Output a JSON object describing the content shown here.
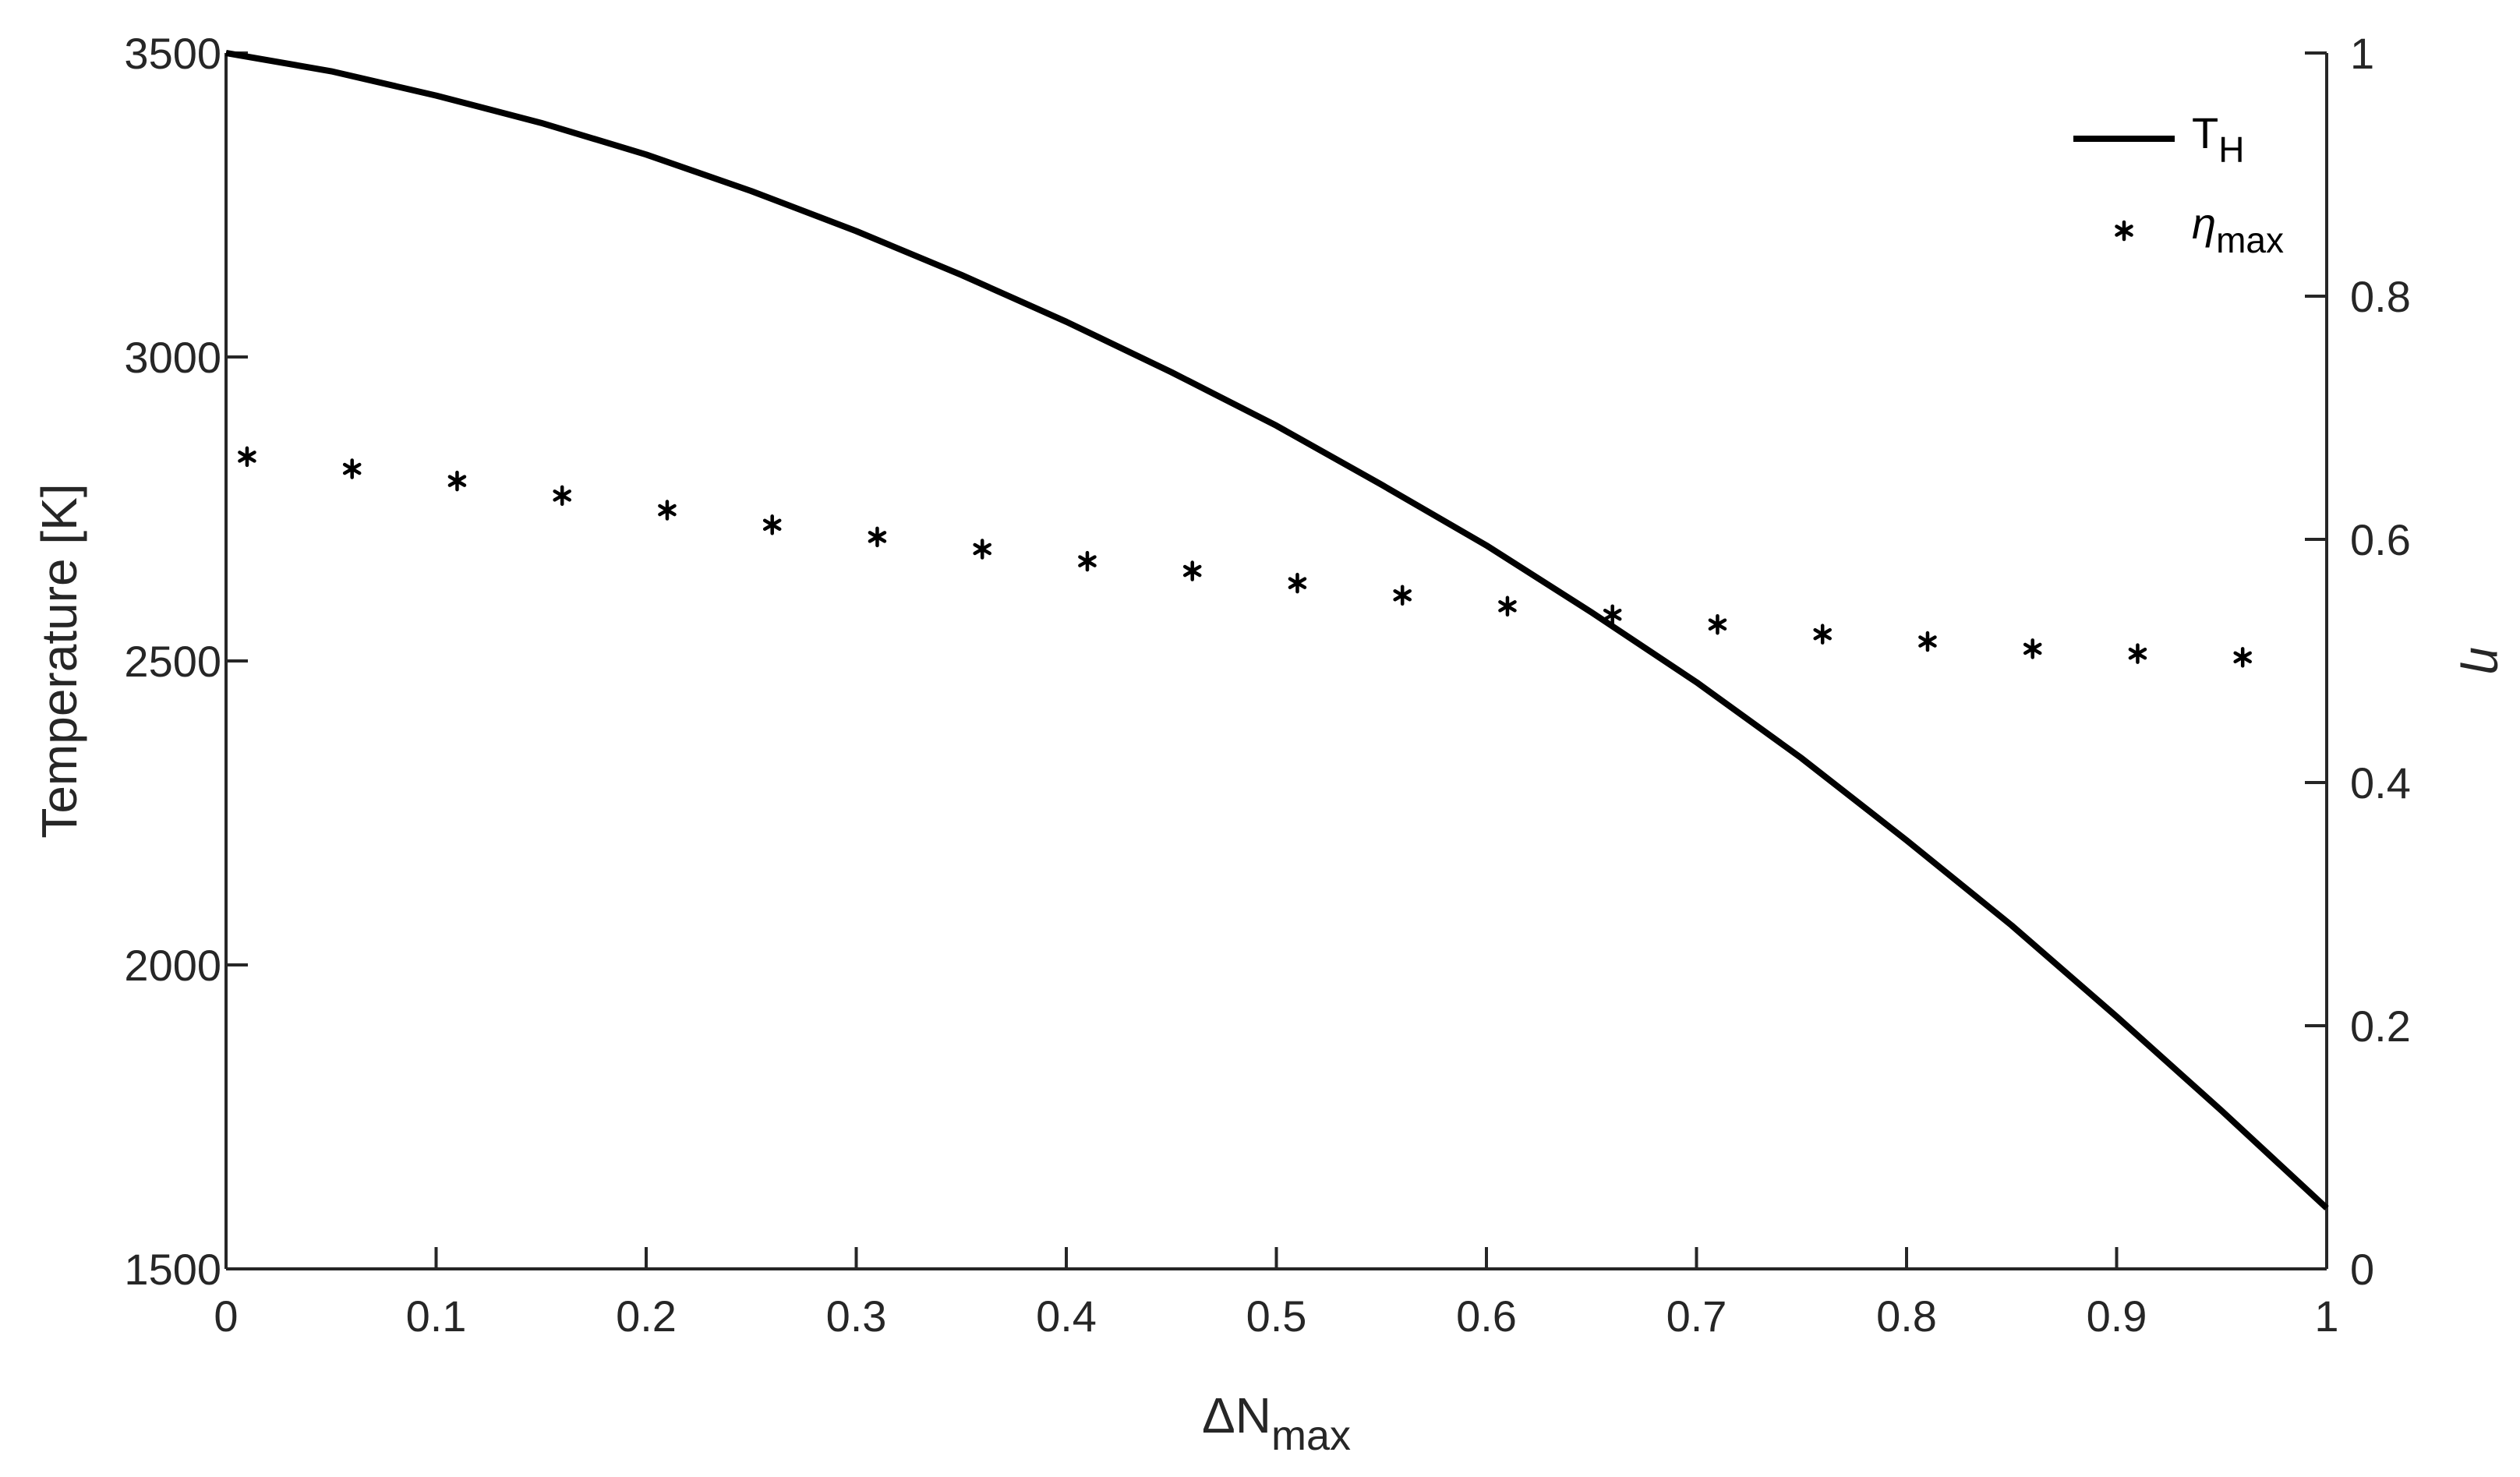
{
  "chart_data": {
    "type": "line",
    "x_axis": {
      "label_main": "ΔN",
      "label_sub": "max",
      "range": [
        0,
        1
      ],
      "ticks": [
        0,
        0.1,
        0.2,
        0.3,
        0.4,
        0.5,
        0.6,
        0.7,
        0.8,
        0.9,
        1
      ],
      "tick_labels": [
        "0",
        "0.1",
        "0.2",
        "0.3",
        "0.4",
        "0.5",
        "0.6",
        "0.7",
        "0.8",
        "0.9",
        "1"
      ]
    },
    "y_left_axis": {
      "label": "Temperature [K]",
      "range": [
        1500,
        3500
      ],
      "ticks": [
        1500,
        2000,
        2500,
        3000,
        3500
      ],
      "tick_labels": [
        "1500",
        "2000",
        "2500",
        "3000",
        "3500"
      ]
    },
    "y_right_axis": {
      "label": "η",
      "range": [
        0,
        1
      ],
      "ticks": [
        0,
        0.2,
        0.4,
        0.6,
        0.8,
        1
      ],
      "tick_labels": [
        "0",
        "0.2",
        "0.4",
        "0.6",
        "0.8",
        "1"
      ]
    },
    "series": [
      {
        "name_main": "T",
        "name_sub": "H",
        "axis": "left",
        "style": "solid-line",
        "color": "#000000",
        "x": [
          0,
          0.05,
          0.1,
          0.15,
          0.2,
          0.25,
          0.3,
          0.35,
          0.4,
          0.45,
          0.5,
          0.55,
          0.6,
          0.65,
          0.7,
          0.75,
          0.8,
          0.85,
          0.9,
          0.95,
          1.0
        ],
        "y": [
          3500,
          3470,
          3430,
          3385,
          3333,
          3273,
          3207,
          3135,
          3058,
          2975,
          2887,
          2790,
          2690,
          2580,
          2465,
          2340,
          2205,
          2065,
          1915,
          1760,
          1600
        ]
      },
      {
        "name_main": "η",
        "name_sub": "max",
        "axis": "right",
        "style": "asterisk-markers",
        "color": "#000000",
        "x": [
          0.01,
          0.06,
          0.11,
          0.16,
          0.21,
          0.26,
          0.31,
          0.36,
          0.41,
          0.46,
          0.51,
          0.56,
          0.61,
          0.66,
          0.71,
          0.76,
          0.81,
          0.86,
          0.91,
          0.96
        ],
        "y": [
          0.668,
          0.658,
          0.648,
          0.636,
          0.624,
          0.612,
          0.602,
          0.592,
          0.582,
          0.574,
          0.564,
          0.554,
          0.545,
          0.538,
          0.53,
          0.522,
          0.516,
          0.51,
          0.506,
          0.503
        ]
      }
    ],
    "legend": {
      "placement": "top-right"
    },
    "grid": false
  }
}
